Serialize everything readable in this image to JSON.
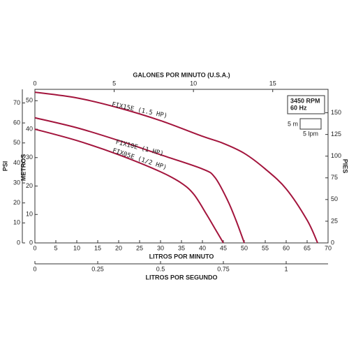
{
  "chart_data": {
    "type": "line",
    "x_label": "LITROS POR MINUTO",
    "y_label": "METROS",
    "xlim": [
      0,
      70
    ],
    "xticks": [
      0,
      5,
      10,
      15,
      20,
      25,
      30,
      35,
      40,
      45,
      50,
      55,
      60,
      65,
      70
    ],
    "ylim": [
      0,
      54
    ],
    "yticks": [
      0,
      10,
      20,
      30,
      40,
      50
    ],
    "psi_axis": {
      "label": "PSI",
      "lim": [
        0,
        76.8
      ],
      "ticks": [
        0,
        10,
        20,
        30,
        40,
        50,
        60,
        70
      ]
    },
    "pies_axis": {
      "label": "PIES",
      "lim": [
        0,
        177
      ],
      "ticks": [
        0,
        25,
        50,
        75,
        100,
        125,
        150
      ]
    },
    "gpm_axis": {
      "label": "GALONES POR MINUTO (U.S.A.)",
      "lim": [
        0,
        18.49
      ],
      "ticks": [
        0,
        5,
        10,
        15
      ]
    },
    "lps_axis": {
      "label": "LITROS POR SEGUNDO",
      "lim": [
        0,
        1.1667
      ],
      "ticks": [
        0,
        0.25,
        0.5,
        0.75,
        1
      ]
    },
    "annotations": {
      "rpm": "3450 RPM",
      "hz": "60 Hz",
      "scale_y": "5 m",
      "scale_x": "5 lpm"
    },
    "series": [
      {
        "name": "FIX15E (1.5 HP)",
        "color": "#a3143c",
        "x": [
          0,
          10,
          20,
          30,
          40,
          45,
          50,
          55,
          60,
          65,
          67.5
        ],
        "values": [
          53,
          51,
          47.5,
          43,
          37.5,
          35,
          31.5,
          26,
          19,
          8,
          0
        ]
      },
      {
        "name": "FIX10E (1 HP)",
        "color": "#a3143c",
        "x": [
          0,
          10,
          20,
          30,
          40,
          43,
          46,
          48,
          50
        ],
        "values": [
          44,
          40.5,
          36,
          31,
          26,
          23,
          15,
          8,
          0
        ]
      },
      {
        "name": "FIX05E (1/2 HP)",
        "color": "#a3143c",
        "x": [
          0,
          10,
          20,
          30,
          35,
          38,
          41,
          43,
          45
        ],
        "values": [
          40,
          36,
          31,
          25,
          21,
          17,
          10,
          5,
          0
        ]
      }
    ]
  }
}
